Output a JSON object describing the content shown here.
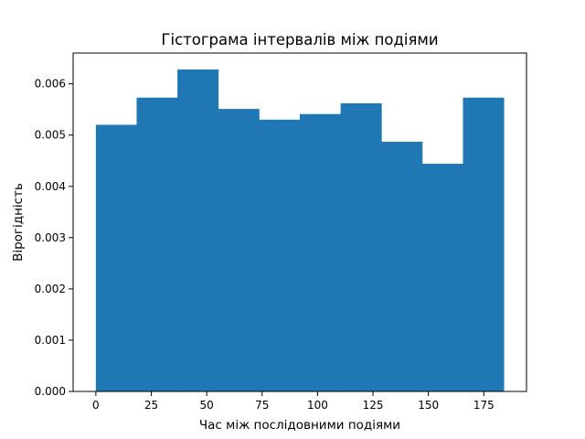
{
  "colors": {
    "bar": "#1f77b4",
    "axis": "#000000",
    "background": "#ffffff"
  },
  "chart_data": {
    "type": "bar",
    "title": "Гістограма інтервалів між подіями",
    "xlabel": "Час між послідовними подіями",
    "ylabel": "Вірогідність",
    "xlim": [
      -10.25,
      194.25
    ],
    "ylim": [
      0,
      0.0066
    ],
    "grid": false,
    "legend": "none",
    "bin_edges": [
      0,
      18.4,
      36.8,
      55.2,
      73.6,
      92.0,
      110.4,
      128.8,
      147.2,
      165.6,
      184
    ],
    "values": [
      0.0052,
      0.00573,
      0.00628,
      0.00551,
      0.0053,
      0.00541,
      0.00562,
      0.00487,
      0.00444,
      0.00573
    ],
    "xticks": [
      0,
      25,
      50,
      75,
      100,
      125,
      150,
      175
    ],
    "xtick_labels": [
      "0",
      "25",
      "50",
      "75",
      "100",
      "125",
      "150",
      "175"
    ],
    "yticks": [
      0,
      0.001,
      0.002,
      0.003,
      0.004,
      0.005,
      0.006
    ],
    "ytick_labels": [
      "0.000",
      "0.001",
      "0.002",
      "0.003",
      "0.004",
      "0.005",
      "0.006"
    ]
  }
}
